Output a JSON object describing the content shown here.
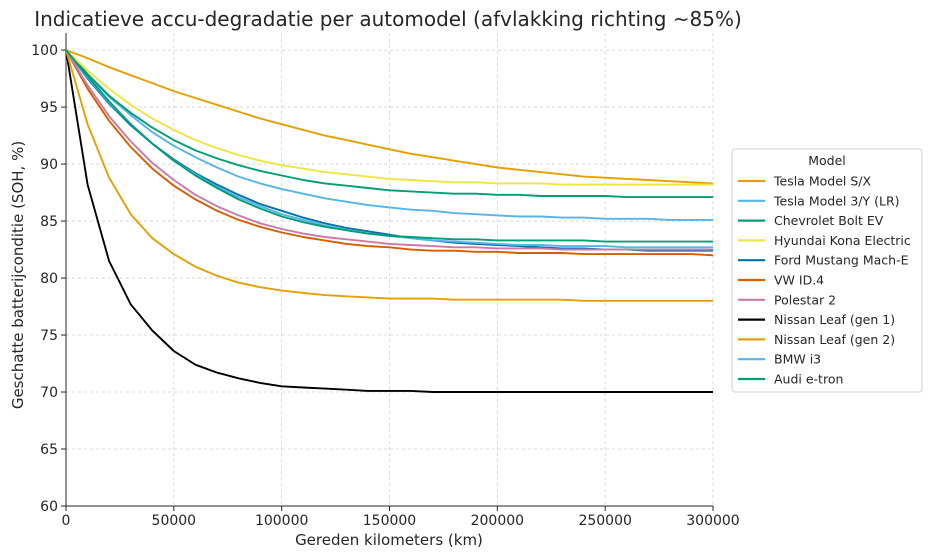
{
  "chart_data": {
    "type": "line",
    "title": "Indicatieve accu-degradatie per automodel (afvlakking richting ~85%)",
    "xlabel": "Gereden kilometers (km)",
    "ylabel": "Geschatte batterijconditie (SOH, %)",
    "xlim": [
      0,
      300000
    ],
    "ylim": [
      60,
      101.5
    ],
    "xticks": [
      0,
      50000,
      100000,
      150000,
      200000,
      250000,
      300000
    ],
    "yticks": [
      60,
      65,
      70,
      75,
      80,
      85,
      90,
      95,
      100
    ],
    "grid": true,
    "legend": {
      "title": "Model",
      "placement": "center-right-outside"
    },
    "x": [
      0,
      10000,
      20000,
      30000,
      40000,
      50000,
      60000,
      70000,
      80000,
      90000,
      100000,
      110000,
      120000,
      130000,
      140000,
      150000,
      160000,
      170000,
      180000,
      190000,
      200000,
      210000,
      220000,
      230000,
      240000,
      250000,
      260000,
      270000,
      280000,
      290000,
      300000
    ],
    "series": [
      {
        "name": "Tesla Model S/X",
        "color": "#E69F00",
        "values": [
          100.0,
          99.3,
          98.5,
          97.8,
          97.1,
          96.4,
          95.8,
          95.2,
          94.6,
          94.0,
          93.5,
          93.0,
          92.5,
          92.1,
          91.7,
          91.3,
          90.9,
          90.6,
          90.3,
          90.0,
          89.7,
          89.5,
          89.3,
          89.1,
          88.9,
          88.8,
          88.7,
          88.6,
          88.5,
          88.4,
          88.3
        ]
      },
      {
        "name": "Tesla Model 3/Y (LR)",
        "color": "#56B4E9",
        "values": [
          100.0,
          97.8,
          95.9,
          94.3,
          92.8,
          91.6,
          90.6,
          89.7,
          88.9,
          88.3,
          87.8,
          87.4,
          87.0,
          86.7,
          86.4,
          86.2,
          86.0,
          85.9,
          85.7,
          85.6,
          85.5,
          85.4,
          85.4,
          85.3,
          85.3,
          85.2,
          85.2,
          85.2,
          85.1,
          85.1,
          85.1
        ]
      },
      {
        "name": "Chevrolet Bolt EV",
        "color": "#009E73",
        "values": [
          100.0,
          97.9,
          96.0,
          94.5,
          93.2,
          92.1,
          91.2,
          90.5,
          89.9,
          89.4,
          89.0,
          88.6,
          88.3,
          88.1,
          87.9,
          87.7,
          87.6,
          87.5,
          87.4,
          87.4,
          87.3,
          87.3,
          87.2,
          87.2,
          87.2,
          87.2,
          87.1,
          87.1,
          87.1,
          87.1,
          87.1
        ]
      },
      {
        "name": "Hyundai Kona Electric",
        "color": "#F0E442",
        "values": [
          100.0,
          98.2,
          96.6,
          95.2,
          94.0,
          93.0,
          92.1,
          91.4,
          90.8,
          90.3,
          89.9,
          89.6,
          89.3,
          89.1,
          88.9,
          88.7,
          88.6,
          88.5,
          88.4,
          88.4,
          88.3,
          88.3,
          88.3,
          88.2,
          88.2,
          88.2,
          88.2,
          88.2,
          88.2,
          88.2,
          88.2
        ]
      },
      {
        "name": "Ford Mustang Mach-E",
        "color": "#0072B2",
        "values": [
          100.0,
          97.5,
          95.3,
          93.4,
          91.8,
          90.4,
          89.2,
          88.2,
          87.3,
          86.5,
          85.9,
          85.3,
          84.8,
          84.4,
          84.1,
          83.8,
          83.5,
          83.3,
          83.1,
          83.0,
          82.9,
          82.8,
          82.7,
          82.6,
          82.6,
          82.5,
          82.5,
          82.4,
          82.4,
          82.4,
          82.4
        ]
      },
      {
        "name": "VW ID.4",
        "color": "#D55E00",
        "values": [
          100.0,
          96.6,
          93.8,
          91.5,
          89.6,
          88.1,
          86.9,
          85.9,
          85.1,
          84.5,
          84.0,
          83.6,
          83.3,
          83.0,
          82.8,
          82.7,
          82.5,
          82.4,
          82.4,
          82.3,
          82.3,
          82.2,
          82.2,
          82.2,
          82.1,
          82.1,
          82.1,
          82.1,
          82.1,
          82.1,
          82.0
        ]
      },
      {
        "name": "Polestar 2",
        "color": "#CC79A7",
        "values": [
          100.0,
          96.9,
          94.2,
          92.0,
          90.1,
          88.6,
          87.3,
          86.3,
          85.5,
          84.8,
          84.3,
          83.9,
          83.6,
          83.4,
          83.2,
          83.0,
          82.9,
          82.8,
          82.7,
          82.7,
          82.6,
          82.6,
          82.6,
          82.5,
          82.5,
          82.5,
          82.5,
          82.5,
          82.5,
          82.5,
          82.5
        ]
      },
      {
        "name": "Nissan Leaf (gen 1)",
        "color": "#000000",
        "values": [
          100.0,
          88.2,
          81.5,
          77.7,
          75.4,
          73.6,
          72.4,
          71.7,
          71.2,
          70.8,
          70.5,
          70.4,
          70.3,
          70.2,
          70.1,
          70.1,
          70.1,
          70.0,
          70.0,
          70.0,
          70.0,
          70.0,
          70.0,
          70.0,
          70.0,
          70.0,
          70.0,
          70.0,
          70.0,
          70.0,
          70.0
        ]
      },
      {
        "name": "Nissan Leaf (gen 2)",
        "color": "#E69F00",
        "values": [
          100.0,
          93.5,
          88.8,
          85.6,
          83.5,
          82.1,
          81.0,
          80.2,
          79.6,
          79.2,
          78.9,
          78.7,
          78.5,
          78.4,
          78.3,
          78.2,
          78.2,
          78.2,
          78.1,
          78.1,
          78.1,
          78.1,
          78.1,
          78.1,
          78.0,
          78.0,
          78.0,
          78.0,
          78.0,
          78.0,
          78.0
        ]
      },
      {
        "name": "BMW i3",
        "color": "#56B4E9",
        "values": [
          100.0,
          97.6,
          95.4,
          93.5,
          91.8,
          90.3,
          89.1,
          88.0,
          87.1,
          86.3,
          85.6,
          85.1,
          84.6,
          84.2,
          83.9,
          83.7,
          83.5,
          83.3,
          83.2,
          83.1,
          83.0,
          82.9,
          82.9,
          82.8,
          82.8,
          82.8,
          82.7,
          82.7,
          82.7,
          82.7,
          82.7
        ]
      },
      {
        "name": "Audi e-tron",
        "color": "#009E73",
        "values": [
          100.0,
          97.7,
          95.5,
          93.5,
          91.8,
          90.3,
          89.0,
          87.9,
          86.9,
          86.1,
          85.4,
          84.9,
          84.5,
          84.2,
          83.9,
          83.7,
          83.6,
          83.5,
          83.4,
          83.4,
          83.3,
          83.3,
          83.3,
          83.3,
          83.3,
          83.2,
          83.2,
          83.2,
          83.2,
          83.2,
          83.2
        ]
      }
    ]
  }
}
